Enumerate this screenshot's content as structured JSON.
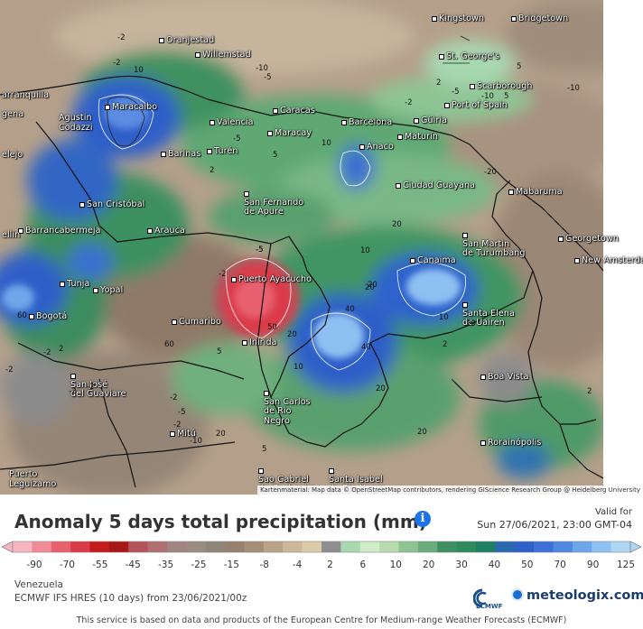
{
  "map": {
    "attribution": "Kartenmaterial: Map data © OpenStreetMap contributors, rendering GIScience Research Group @ Heidelberg University",
    "cities": [
      "Kingstown",
      "Bridgetown",
      "Oranjestad",
      "Willemstad",
      "St. George's",
      "Scarborough",
      "Port of Spain",
      "Maracaibo",
      "Caracas",
      "Barcelona",
      "Güiria",
      "Agustín Codazzi",
      "Valencia",
      "Maracay",
      "Maturín",
      "Anaco",
      "Barinas",
      "Turén",
      "Ciudad Guayana",
      "San Cristóbal",
      "San Fernando de Apure",
      "Mabaruma",
      "Barrancabermeja",
      "Arauca",
      "San Martín de Turumbang",
      "Georgetown",
      "New Amsterdam",
      "Canaima",
      "Puerto Ayacucho",
      "Tunja",
      "Yopal",
      "Santa Elena de Uairén",
      "Bogotá",
      "Cumaribo",
      "Inírida",
      "Boa Vista",
      "San José del Guaviare",
      "San Carlos de Río Negro",
      "Mitú",
      "Rorainópolis",
      "São Gabriel da Cachoeira",
      "Santa Isabel do Rio Negro",
      "Puerto Leguízamo",
      "Barranquilla",
      "Cartagena",
      "Valledupar",
      "Medellín"
    ],
    "contour_labels": [
      "-2",
      "-2",
      "-5",
      "10",
      "-10",
      "5",
      "-10",
      "-5",
      "2",
      "5",
      "-10",
      "-2",
      "-5",
      "2",
      "5",
      "10",
      "-20",
      "-5",
      "10",
      "20",
      "20",
      "-5",
      "-2",
      "20",
      "10",
      "40",
      "20",
      "20",
      "40",
      "20",
      "50",
      "60",
      "2",
      "2",
      "-2",
      "-2",
      "-2",
      "5",
      "20",
      "10",
      "20",
      "-10",
      "-2",
      "2",
      "-5",
      "-2",
      "60",
      "-2",
      "5"
    ]
  },
  "legend": {
    "title": "Anomaly 5 days total precipitation (mm)",
    "info_icon": "info-icon",
    "valid_for": "Valid for",
    "valid_date": "Sun 27/06/2021, 23:00 GMT-04",
    "ticks": [
      "-90",
      "-70",
      "-55",
      "-45",
      "-35",
      "-25",
      "-15",
      "-8",
      "-4",
      "2",
      "6",
      "10",
      "20",
      "30",
      "40",
      "50",
      "70",
      "90",
      "125"
    ],
    "colors": [
      "#f6b6c0",
      "#f28b98",
      "#e8606f",
      "#db3a48",
      "#c41c1c",
      "#a81818",
      "#b4535c",
      "#b07070",
      "#a28580",
      "#9a8c80",
      "#8e8478",
      "#978070",
      "#a48e78",
      "#bba38a",
      "#cbb79a",
      "#dccba8",
      "#8e8e8e",
      "#a8d8b0",
      "#d0ecc8",
      "#b8dcb0",
      "#8ec494",
      "#6aac7c",
      "#3e9060",
      "#2d8a5a",
      "#1f7f64",
      "#2a68b0",
      "#2f5fc8",
      "#3d70d8",
      "#5089e0",
      "#6ea6ea",
      "#8fc0f2",
      "#b0d6f6"
    ],
    "region": "Venezuela",
    "model": "ECMWF IFS HRES (10 days) from 23/06/2021/00z",
    "ecmwf_label": "ECMWF",
    "brand": "meteologix.com",
    "disclaimer": "This service is based on data and products of the European Centre for Medium-range Weather Forecasts (ECMWF)"
  }
}
